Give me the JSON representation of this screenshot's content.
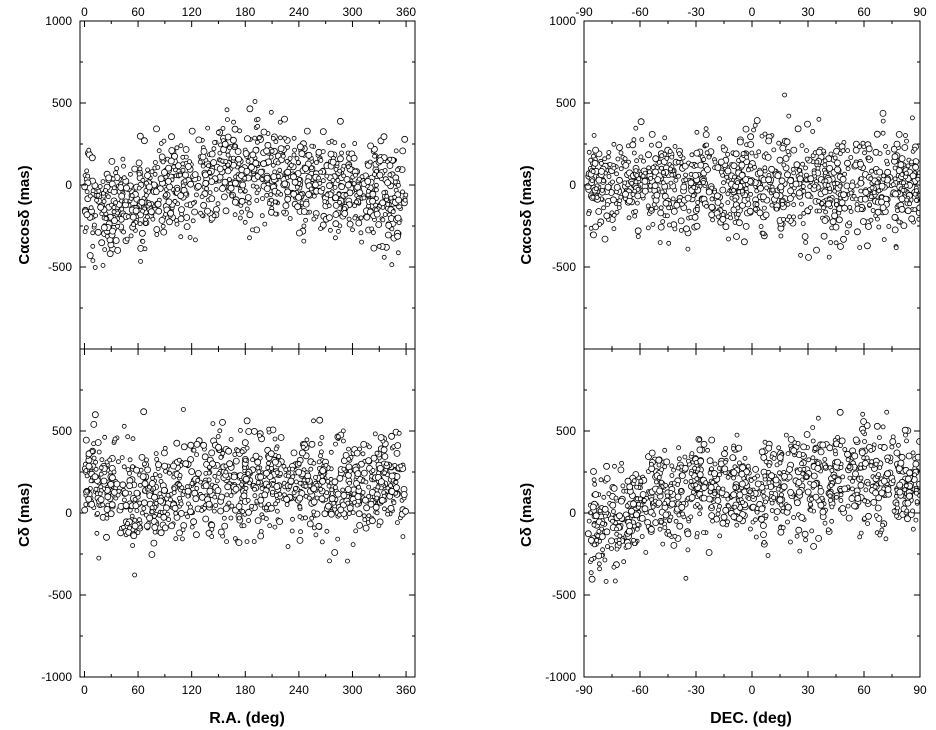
{
  "chart_data": [
    {
      "type": "scatter",
      "panel": "top-left",
      "ylabel": "Cαcosδ (mas)",
      "x_ticks": [
        "0",
        "60",
        "120",
        "180",
        "240",
        "300",
        "360"
      ],
      "x_ticks_top": [
        "0",
        "60",
        "120",
        "180",
        "240",
        "300",
        "360"
      ],
      "y_ticks": [
        "1000",
        "500",
        "0",
        "-500"
      ],
      "xlim": [
        -5,
        370
      ],
      "ylim": [
        -1000,
        1000
      ],
      "x_range_of_points": [
        0,
        360
      ],
      "approx_y_centre": [
        {
          "x": 0,
          "y": -100
        },
        {
          "x": 30,
          "y": -150
        },
        {
          "x": 60,
          "y": -110
        },
        {
          "x": 90,
          "y": -30
        },
        {
          "x": 120,
          "y": 20
        },
        {
          "x": 150,
          "y": 70
        },
        {
          "x": 180,
          "y": 90
        },
        {
          "x": 210,
          "y": 90
        },
        {
          "x": 240,
          "y": 30
        },
        {
          "x": 270,
          "y": 0
        },
        {
          "x": 300,
          "y": -20
        },
        {
          "x": 330,
          "y": -60
        },
        {
          "x": 360,
          "y": -80
        }
      ],
      "y_range_of_points": [
        -520,
        580
      ],
      "markers": "open circles"
    },
    {
      "type": "scatter",
      "panel": "top-right",
      "ylabel": "Cαcosδ (mas)",
      "x_ticks": [
        "-90",
        "-60",
        "-30",
        "0",
        "30",
        "60",
        "90"
      ],
      "x_ticks_top": [
        "-90",
        "-60",
        "-30",
        "0",
        "30",
        "60",
        "90"
      ],
      "y_ticks": [
        "1000",
        "500",
        "0",
        "-500"
      ],
      "xlim": [
        -90,
        90
      ],
      "ylim": [
        -1000,
        1000
      ],
      "x_range_of_points": [
        -88,
        90
      ],
      "approx_y_centre": [
        {
          "x": -80,
          "y": 20
        },
        {
          "x": -60,
          "y": 0
        },
        {
          "x": -30,
          "y": -40
        },
        {
          "x": 0,
          "y": 20
        },
        {
          "x": 30,
          "y": 10
        },
        {
          "x": 60,
          "y": 0
        },
        {
          "x": 90,
          "y": 0
        }
      ],
      "y_range_of_points": [
        -560,
        580
      ],
      "markers": "open circles"
    },
    {
      "type": "scatter",
      "panel": "bottom-left",
      "ylabel": "Cδ (mas)",
      "xlabel": "R.A. (deg)",
      "x_ticks": [
        "0",
        "60",
        "120",
        "180",
        "240",
        "300",
        "360"
      ],
      "y_ticks": [
        "500",
        "0",
        "-500",
        "-1000"
      ],
      "xlim": [
        -5,
        370
      ],
      "ylim": [
        -1000,
        1000
      ],
      "x_range_of_points": [
        0,
        360
      ],
      "approx_y_centre": [
        {
          "x": 0,
          "y": 200
        },
        {
          "x": 30,
          "y": 160
        },
        {
          "x": 60,
          "y": 80
        },
        {
          "x": 90,
          "y": 80
        },
        {
          "x": 120,
          "y": 160
        },
        {
          "x": 150,
          "y": 180
        },
        {
          "x": 180,
          "y": 180
        },
        {
          "x": 210,
          "y": 180
        },
        {
          "x": 240,
          "y": 180
        },
        {
          "x": 270,
          "y": 170
        },
        {
          "x": 300,
          "y": 160
        },
        {
          "x": 330,
          "y": 200
        },
        {
          "x": 360,
          "y": 200
        }
      ],
      "y_range_of_points": [
        -430,
        710
      ],
      "markers": "open circles"
    },
    {
      "type": "scatter",
      "panel": "bottom-right",
      "ylabel": "Cδ (mas)",
      "xlabel": "DEC. (deg)",
      "x_ticks": [
        "-90",
        "-60",
        "-30",
        "0",
        "30",
        "60",
        "90"
      ],
      "y_ticks": [
        "500",
        "0",
        "-500",
        "-1000"
      ],
      "xlim": [
        -90,
        90
      ],
      "ylim": [
        -1000,
        1000
      ],
      "x_range_of_points": [
        -88,
        90
      ],
      "approx_y_centre": [
        {
          "x": -80,
          "y": -80
        },
        {
          "x": -60,
          "y": 20
        },
        {
          "x": -30,
          "y": 150
        },
        {
          "x": 0,
          "y": 120
        },
        {
          "x": 30,
          "y": 200
        },
        {
          "x": 60,
          "y": 240
        },
        {
          "x": 90,
          "y": 150
        }
      ],
      "y_range_of_points": [
        -420,
        730
      ],
      "markers": "open circles"
    }
  ]
}
